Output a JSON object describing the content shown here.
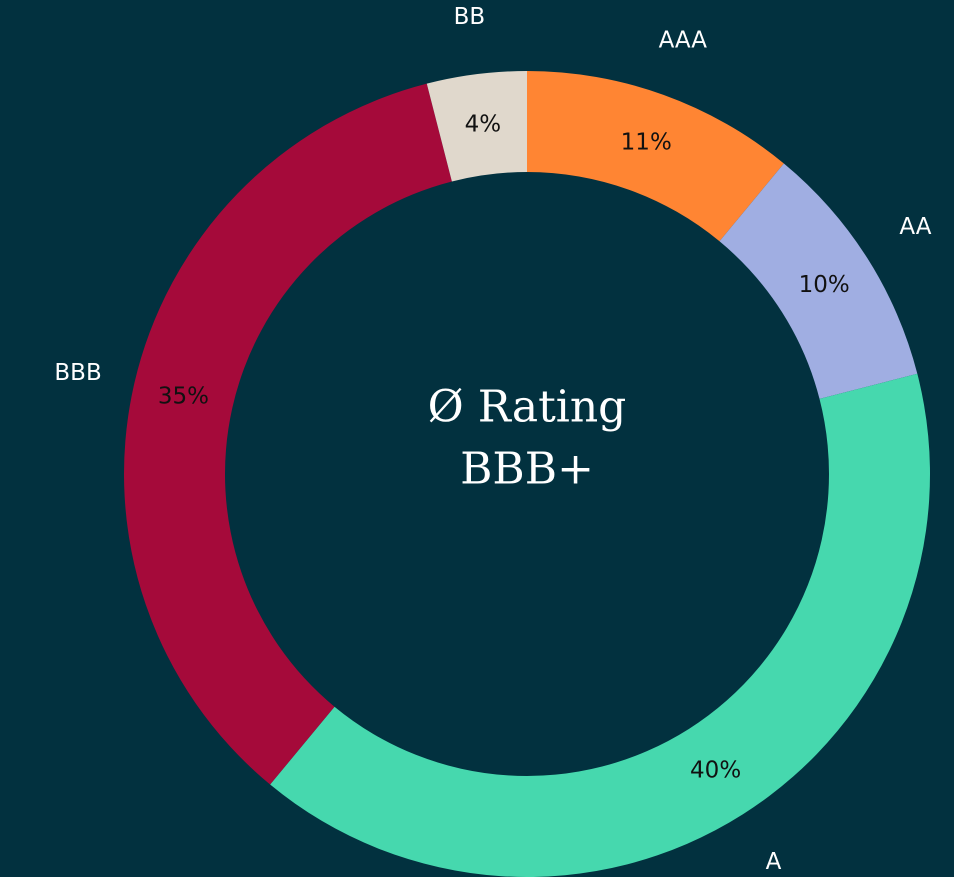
{
  "chart_data": {
    "type": "donut",
    "categories": [
      "AAA",
      "AA",
      "A",
      "BBB",
      "BB"
    ],
    "values": [
      11,
      10,
      40,
      35,
      4
    ],
    "value_labels": [
      "11%",
      "10%",
      "40%",
      "35%",
      "4%"
    ],
    "colors": [
      "#ff8533",
      "#a0aee2",
      "#46d8ae",
      "#a50a3a",
      "#e0d8cc"
    ],
    "center_text": [
      "Ø Rating",
      "BBB+"
    ]
  }
}
